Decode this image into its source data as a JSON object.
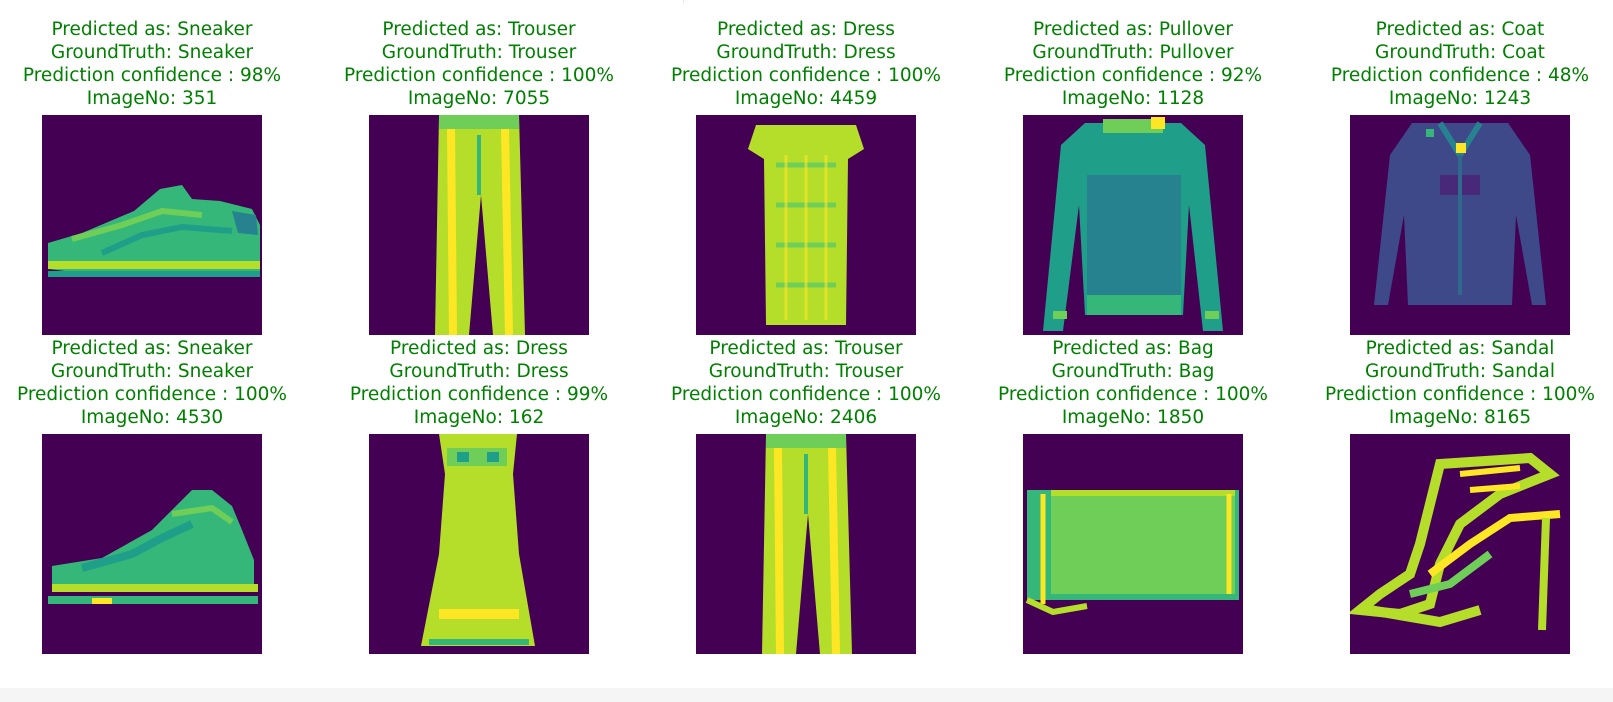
{
  "chart_data": {
    "type": "image-grid",
    "rows": 2,
    "cols": 5,
    "colors": {
      "title_text": "#008000",
      "background": "#440154",
      "viridis": [
        "#440154",
        "#482878",
        "#3e4989",
        "#31688e",
        "#26828e",
        "#1f9e89",
        "#35b779",
        "#6ece58",
        "#b5de2b",
        "#fde725"
      ]
    },
    "panels": [
      {
        "predicted": "Predicted as: Sneaker",
        "ground_truth": "GroundTruth: Sneaker",
        "confidence": "Prediction confidence : 98%",
        "image_no": "ImageNo: 351",
        "item_icon": "sneaker-icon"
      },
      {
        "predicted": "Predicted as: Trouser",
        "ground_truth": "GroundTruth: Trouser",
        "confidence": "Prediction confidence : 100%",
        "image_no": "ImageNo: 7055",
        "item_icon": "trouser-icon"
      },
      {
        "predicted": "Predicted as: Dress",
        "ground_truth": "GroundTruth: Dress",
        "confidence": "Prediction confidence : 100%",
        "image_no": "ImageNo: 4459",
        "item_icon": "dress-icon"
      },
      {
        "predicted": "Predicted as: Pullover",
        "ground_truth": "GroundTruth: Pullover",
        "confidence": "Prediction confidence : 92%",
        "image_no": "ImageNo: 1128",
        "item_icon": "pullover-icon"
      },
      {
        "predicted": "Predicted as: Coat",
        "ground_truth": "GroundTruth: Coat",
        "confidence": "Prediction confidence : 48%",
        "image_no": "ImageNo: 1243",
        "item_icon": "coat-icon"
      },
      {
        "predicted": "Predicted as: Sneaker",
        "ground_truth": "GroundTruth: Sneaker",
        "confidence": "Prediction confidence : 100%",
        "image_no": "ImageNo: 4530",
        "item_icon": "sneaker-icon"
      },
      {
        "predicted": "Predicted as: Dress",
        "ground_truth": "GroundTruth: Dress",
        "confidence": "Prediction confidence : 99%",
        "image_no": "ImageNo: 162",
        "item_icon": "dress-icon"
      },
      {
        "predicted": "Predicted as: Trouser",
        "ground_truth": "GroundTruth: Trouser",
        "confidence": "Prediction confidence : 100%",
        "image_no": "ImageNo: 2406",
        "item_icon": "trouser-icon"
      },
      {
        "predicted": "Predicted as: Bag",
        "ground_truth": "GroundTruth: Bag",
        "confidence": "Prediction confidence : 100%",
        "image_no": "ImageNo: 1850",
        "item_icon": "bag-icon"
      },
      {
        "predicted": "Predicted as: Sandal",
        "ground_truth": "GroundTruth: Sandal",
        "confidence": "Prediction confidence : 100%",
        "image_no": "ImageNo: 8165",
        "item_icon": "sandal-icon"
      }
    ]
  }
}
